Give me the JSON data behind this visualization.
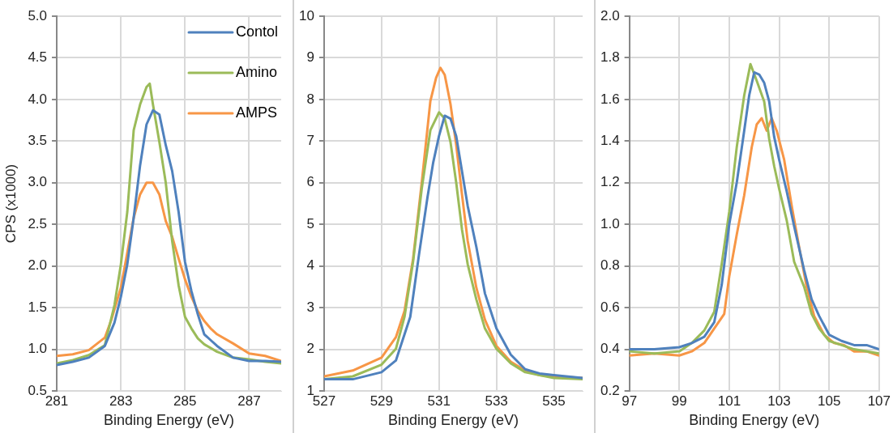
{
  "chart_data": [
    {
      "type": "line",
      "xlabel": "Binding Energy (eV)",
      "ylabel": "CPS (x1000)",
      "xlim": [
        281,
        288
      ],
      "xticks": [
        281,
        283,
        285,
        287
      ],
      "ylim": [
        0.5,
        5.0
      ],
      "yticks": [
        {
          "value": 0.5,
          "label": "0.5"
        },
        {
          "value": 1,
          "label": "1.0"
        },
        1.5,
        {
          "value": 2,
          "label": "2.0"
        },
        2.5,
        {
          "value": 3,
          "label": "3.0"
        },
        3.5,
        {
          "value": 4,
          "label": "4.0"
        },
        4.5,
        {
          "value": 5,
          "label": "5.0"
        }
      ],
      "grid": true,
      "legend": "top right",
      "marker": "none",
      "line_style": "solid",
      "series": [
        {
          "name": "Contol",
          "color": "#4f81bd",
          "x": [
            281,
            281.5,
            282,
            282.5,
            282.8,
            283,
            283.2,
            283.4,
            283.6,
            283.8,
            284,
            284.2,
            284.4,
            284.6,
            284.8,
            285,
            285.2,
            285.4,
            285.6,
            285.8,
            286,
            286.5,
            287,
            287.5,
            288
          ],
          "values": [
            0.81,
            0.85,
            0.9,
            1.04,
            1.32,
            1.63,
            2.02,
            2.58,
            3.21,
            3.7,
            3.87,
            3.82,
            3.45,
            3.14,
            2.65,
            2.05,
            1.7,
            1.42,
            1.18,
            1.11,
            1.04,
            0.9,
            0.86,
            0.86,
            0.85
          ]
        },
        {
          "name": "Amino",
          "color": "#9bbb59",
          "x": [
            281,
            281.5,
            282,
            282.5,
            282.8,
            283,
            283.2,
            283.4,
            283.6,
            283.8,
            283.9,
            284,
            284.2,
            284.4,
            284.6,
            284.8,
            285,
            285.2,
            285.4,
            285.6,
            286,
            286.5,
            287,
            287.5,
            288
          ],
          "values": [
            0.83,
            0.87,
            0.93,
            1.05,
            1.53,
            2.02,
            2.65,
            3.63,
            3.94,
            4.15,
            4.19,
            3.94,
            3.49,
            3.0,
            2.3,
            1.77,
            1.39,
            1.25,
            1.13,
            1.06,
            0.97,
            0.9,
            0.88,
            0.85,
            0.83
          ]
        },
        {
          "name": "AMPS",
          "color": "#f79646",
          "x": [
            281,
            281.5,
            282,
            282.5,
            282.7,
            283,
            283.2,
            283.4,
            283.6,
            283.8,
            284,
            284.2,
            284.4,
            284.6,
            284.8,
            285,
            285.2,
            285.4,
            285.6,
            285.8,
            286,
            286.5,
            287,
            287.5,
            288
          ],
          "values": [
            0.92,
            0.94,
            0.99,
            1.14,
            1.35,
            1.74,
            2.16,
            2.58,
            2.86,
            3.0,
            3.0,
            2.86,
            2.54,
            2.35,
            2.09,
            1.84,
            1.63,
            1.46,
            1.34,
            1.25,
            1.18,
            1.07,
            0.95,
            0.92,
            0.86
          ]
        }
      ]
    },
    {
      "type": "line",
      "xlabel": "Binding Energy (eV)",
      "xlim": [
        527,
        536
      ],
      "xticks": [
        527,
        529,
        531,
        533,
        535
      ],
      "ylim": [
        1,
        10
      ],
      "yticks": [
        1,
        2,
        3,
        4,
        5,
        6,
        7,
        8,
        9,
        10
      ],
      "grid": true,
      "marker": "none",
      "line_style": "solid",
      "series": [
        {
          "color": "#4f81bd",
          "x": [
            527,
            528,
            529,
            529.5,
            530,
            530.3,
            530.6,
            530.8,
            531,
            531.2,
            531.4,
            531.6,
            531.8,
            532,
            532.3,
            532.6,
            533,
            533.5,
            534,
            534.5,
            535,
            536
          ],
          "values": [
            1.28,
            1.28,
            1.45,
            1.73,
            2.78,
            4.25,
            5.65,
            6.49,
            7.12,
            7.61,
            7.54,
            7.12,
            6.28,
            5.44,
            4.46,
            3.34,
            2.5,
            1.87,
            1.52,
            1.42,
            1.38,
            1.31
          ]
        },
        {
          "color": "#9bbb59",
          "x": [
            527,
            528,
            529,
            529.5,
            529.8,
            530.1,
            530.4,
            530.7,
            531,
            531.2,
            531.4,
            531.6,
            531.8,
            532,
            532.3,
            532.6,
            533,
            533.5,
            534,
            534.5,
            535,
            536
          ],
          "values": [
            1.28,
            1.35,
            1.63,
            2.01,
            2.78,
            4.11,
            5.86,
            7.26,
            7.69,
            7.54,
            6.98,
            6.0,
            4.88,
            4.04,
            3.2,
            2.5,
            2.01,
            1.66,
            1.45,
            1.38,
            1.31,
            1.28
          ]
        },
        {
          "color": "#f79646",
          "x": [
            527,
            528,
            529,
            529.5,
            529.8,
            530.1,
            530.4,
            530.7,
            530.9,
            531.05,
            531.2,
            531.4,
            531.6,
            531.8,
            532,
            532.3,
            532.6,
            533,
            533.5,
            534,
            534.5,
            535,
            536
          ],
          "values": [
            1.35,
            1.49,
            1.8,
            2.29,
            2.92,
            4.18,
            6.0,
            7.96,
            8.52,
            8.76,
            8.59,
            7.89,
            6.91,
            5.72,
            4.6,
            3.48,
            2.71,
            2.08,
            1.7,
            1.49,
            1.38,
            1.35,
            1.31
          ]
        }
      ]
    },
    {
      "type": "line",
      "xlabel": "Binding Energy (eV)",
      "xlim": [
        97,
        107
      ],
      "xticks": [
        97,
        99,
        101,
        103,
        105,
        107
      ],
      "ylim": [
        0.2,
        2.0
      ],
      "yticks": [
        0.2,
        0.4,
        0.6,
        0.8,
        {
          "value": 1,
          "label": "1.0"
        },
        1.2,
        1.4,
        1.6,
        1.8,
        {
          "value": 2,
          "label": "2.0"
        }
      ],
      "grid": true,
      "marker": "none",
      "line_style": "solid",
      "series": [
        {
          "color": "#4f81bd",
          "x": [
            97,
            98,
            99,
            99.5,
            100,
            100.4,
            100.7,
            101,
            101.3,
            101.6,
            101.8,
            102,
            102.2,
            102.4,
            102.6,
            102.8,
            103,
            103.3,
            103.6,
            104,
            104.3,
            104.6,
            105,
            105.5,
            106,
            106.5,
            107
          ],
          "values": [
            0.4,
            0.4,
            0.41,
            0.43,
            0.46,
            0.53,
            0.71,
            1.0,
            1.2,
            1.45,
            1.62,
            1.73,
            1.72,
            1.68,
            1.59,
            1.42,
            1.31,
            1.16,
            0.99,
            0.78,
            0.64,
            0.56,
            0.47,
            0.44,
            0.42,
            0.42,
            0.4
          ]
        },
        {
          "color": "#9bbb59",
          "x": [
            97,
            98,
            99,
            99.5,
            100,
            100.4,
            100.7,
            101,
            101.3,
            101.6,
            101.85,
            102.1,
            102.4,
            102.6,
            102.8,
            103,
            103.3,
            103.6,
            104,
            104.3,
            104.6,
            105,
            105.5,
            106,
            107
          ],
          "values": [
            0.39,
            0.38,
            0.39,
            0.43,
            0.49,
            0.58,
            0.81,
            1.06,
            1.37,
            1.62,
            1.77,
            1.69,
            1.59,
            1.41,
            1.28,
            1.17,
            1.02,
            0.82,
            0.7,
            0.57,
            0.5,
            0.44,
            0.42,
            0.4,
            0.38
          ]
        },
        {
          "color": "#f79646",
          "x": [
            97,
            98,
            99,
            99.5,
            100,
            100.4,
            100.8,
            101,
            101.3,
            101.6,
            101.9,
            102.1,
            102.3,
            102.5,
            102.7,
            102.9,
            103.2,
            103.5,
            103.8,
            104.1,
            104.4,
            104.8,
            105.2,
            105.6,
            106,
            106.5,
            107
          ],
          "values": [
            0.37,
            0.38,
            0.37,
            0.39,
            0.43,
            0.5,
            0.57,
            0.75,
            0.95,
            1.14,
            1.37,
            1.48,
            1.51,
            1.45,
            1.51,
            1.45,
            1.31,
            1.09,
            0.89,
            0.7,
            0.56,
            0.47,
            0.43,
            0.42,
            0.39,
            0.39,
            0.37
          ]
        }
      ]
    }
  ]
}
